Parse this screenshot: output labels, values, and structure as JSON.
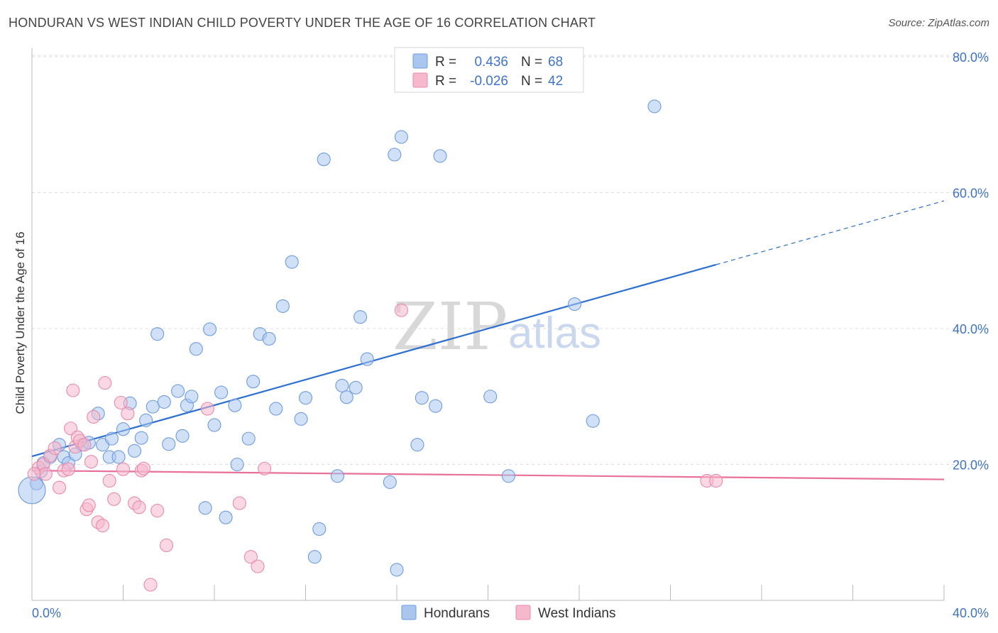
{
  "title": "HONDURAN VS WEST INDIAN CHILD POVERTY UNDER THE AGE OF 16 CORRELATION CHART",
  "source": "Source: ZipAtlas.com",
  "watermark": {
    "zip": "ZIP",
    "atlas": "atlas"
  },
  "colors": {
    "hondurans_fill": "#a9c6ee",
    "hondurans_stroke": "#6f9be0",
    "hondurans_line": "#2b6fd1",
    "west_fill": "#f6b8cc",
    "west_stroke": "#e88aaa",
    "west_line": "#e8709a",
    "grid": "#dddddd",
    "tick": "#3f73c8"
  },
  "legend": {
    "row1": {
      "r_label": "R =",
      "r_value": "0.436",
      "n_label": "N =",
      "n_value": "68"
    },
    "row2": {
      "r_label": "R =",
      "r_value": "-0.026",
      "n_label": "N =",
      "n_value": "42"
    }
  },
  "bottom_legend": {
    "s1": "Hondurans",
    "s2": "West Indians"
  },
  "chart_data": {
    "type": "scatter",
    "title": "HONDURAN VS WEST INDIAN CHILD POVERTY UNDER THE AGE OF 16 CORRELATION CHART",
    "xlabel": "",
    "ylabel": "Child Poverty Under the Age of 16",
    "xlim": [
      0,
      40
    ],
    "ylim": [
      0,
      80
    ],
    "x_tick_labels": [
      "0.0%",
      "40.0%"
    ],
    "y_ticks": [
      20,
      40,
      60,
      80
    ],
    "y_tick_labels": [
      "20.0%",
      "40.0%",
      "60.0%",
      "80.0%"
    ],
    "grid": true,
    "legend_position": "top-center",
    "series": [
      {
        "name": "Hondurans",
        "r": 0.436,
        "n": 68,
        "trend": {
          "x0": 0,
          "y0": 21.2,
          "x1": 40,
          "y1": 58.8,
          "solid_until_x": 30.0
        },
        "points": [
          [
            0.2,
            17.2
          ],
          [
            0.4,
            19.0
          ],
          [
            0.5,
            20.2
          ],
          [
            0.8,
            21.1
          ],
          [
            1.2,
            22.9
          ],
          [
            1.4,
            21.1
          ],
          [
            1.6,
            20.2
          ],
          [
            1.9,
            21.5
          ],
          [
            2.2,
            22.9
          ],
          [
            2.5,
            23.2
          ],
          [
            2.9,
            27.5
          ],
          [
            3.1,
            22.9
          ],
          [
            3.4,
            21.1
          ],
          [
            3.5,
            23.8
          ],
          [
            3.8,
            21.1
          ],
          [
            4.0,
            25.2
          ],
          [
            4.3,
            29.0
          ],
          [
            4.5,
            22.0
          ],
          [
            4.8,
            23.9
          ],
          [
            5.0,
            26.5
          ],
          [
            5.3,
            28.5
          ],
          [
            5.5,
            39.2
          ],
          [
            5.8,
            29.2
          ],
          [
            6.0,
            23.0
          ],
          [
            6.4,
            30.8
          ],
          [
            6.6,
            24.2
          ],
          [
            6.8,
            28.7
          ],
          [
            7.0,
            30.0
          ],
          [
            7.2,
            37.0
          ],
          [
            7.6,
            13.6
          ],
          [
            7.8,
            39.9
          ],
          [
            8.0,
            25.8
          ],
          [
            8.3,
            30.6
          ],
          [
            8.5,
            12.2
          ],
          [
            8.9,
            28.7
          ],
          [
            9.0,
            20.0
          ],
          [
            9.5,
            23.8
          ],
          [
            9.7,
            32.2
          ],
          [
            10.0,
            39.2
          ],
          [
            10.4,
            38.5
          ],
          [
            10.7,
            28.2
          ],
          [
            11.0,
            43.3
          ],
          [
            11.4,
            49.8
          ],
          [
            11.8,
            26.7
          ],
          [
            12.0,
            29.8
          ],
          [
            12.4,
            6.4
          ],
          [
            12.6,
            10.5
          ],
          [
            12.8,
            64.9
          ],
          [
            13.4,
            18.3
          ],
          [
            13.6,
            31.6
          ],
          [
            13.8,
            29.9
          ],
          [
            14.2,
            31.3
          ],
          [
            14.4,
            41.7
          ],
          [
            14.7,
            35.5
          ],
          [
            15.7,
            17.4
          ],
          [
            16.0,
            4.5
          ],
          [
            15.9,
            65.6
          ],
          [
            16.2,
            68.2
          ],
          [
            16.9,
            22.9
          ],
          [
            17.1,
            29.8
          ],
          [
            17.7,
            28.6
          ],
          [
            17.9,
            65.4
          ],
          [
            20.1,
            30.0
          ],
          [
            20.9,
            18.3
          ],
          [
            23.8,
            43.6
          ],
          [
            24.6,
            26.4
          ],
          [
            27.3,
            72.7
          ],
          [
            0.0,
            16.2
          ]
        ]
      },
      {
        "name": "West Indians",
        "r": -0.026,
        "n": 42,
        "trend": {
          "x0": 0,
          "y0": 19.1,
          "x1": 40,
          "y1": 17.8,
          "solid_until_x": 40
        },
        "points": [
          [
            0.3,
            19.5
          ],
          [
            0.5,
            20.0
          ],
          [
            0.6,
            18.6
          ],
          [
            0.8,
            21.3
          ],
          [
            1.0,
            22.4
          ],
          [
            1.2,
            16.6
          ],
          [
            1.4,
            19.1
          ],
          [
            1.6,
            19.3
          ],
          [
            1.7,
            25.3
          ],
          [
            1.8,
            30.9
          ],
          [
            1.9,
            22.6
          ],
          [
            2.0,
            24.0
          ],
          [
            2.1,
            23.5
          ],
          [
            2.3,
            22.9
          ],
          [
            2.4,
            13.4
          ],
          [
            2.5,
            14.0
          ],
          [
            2.6,
            20.4
          ],
          [
            2.7,
            27.0
          ],
          [
            2.9,
            11.5
          ],
          [
            3.1,
            11.0
          ],
          [
            3.2,
            32.0
          ],
          [
            3.4,
            17.6
          ],
          [
            3.6,
            14.9
          ],
          [
            3.9,
            29.1
          ],
          [
            4.0,
            19.3
          ],
          [
            4.2,
            27.5
          ],
          [
            4.5,
            14.3
          ],
          [
            4.7,
            13.7
          ],
          [
            4.8,
            19.1
          ],
          [
            4.9,
            19.4
          ],
          [
            5.2,
            2.3
          ],
          [
            5.5,
            13.2
          ],
          [
            5.9,
            8.1
          ],
          [
            7.7,
            28.2
          ],
          [
            9.1,
            14.3
          ],
          [
            9.6,
            6.4
          ],
          [
            9.9,
            5.0
          ],
          [
            10.2,
            19.4
          ],
          [
            16.2,
            42.7
          ],
          [
            29.6,
            17.6
          ],
          [
            30.0,
            17.6
          ],
          [
            0.1,
            18.6
          ]
        ]
      }
    ]
  }
}
